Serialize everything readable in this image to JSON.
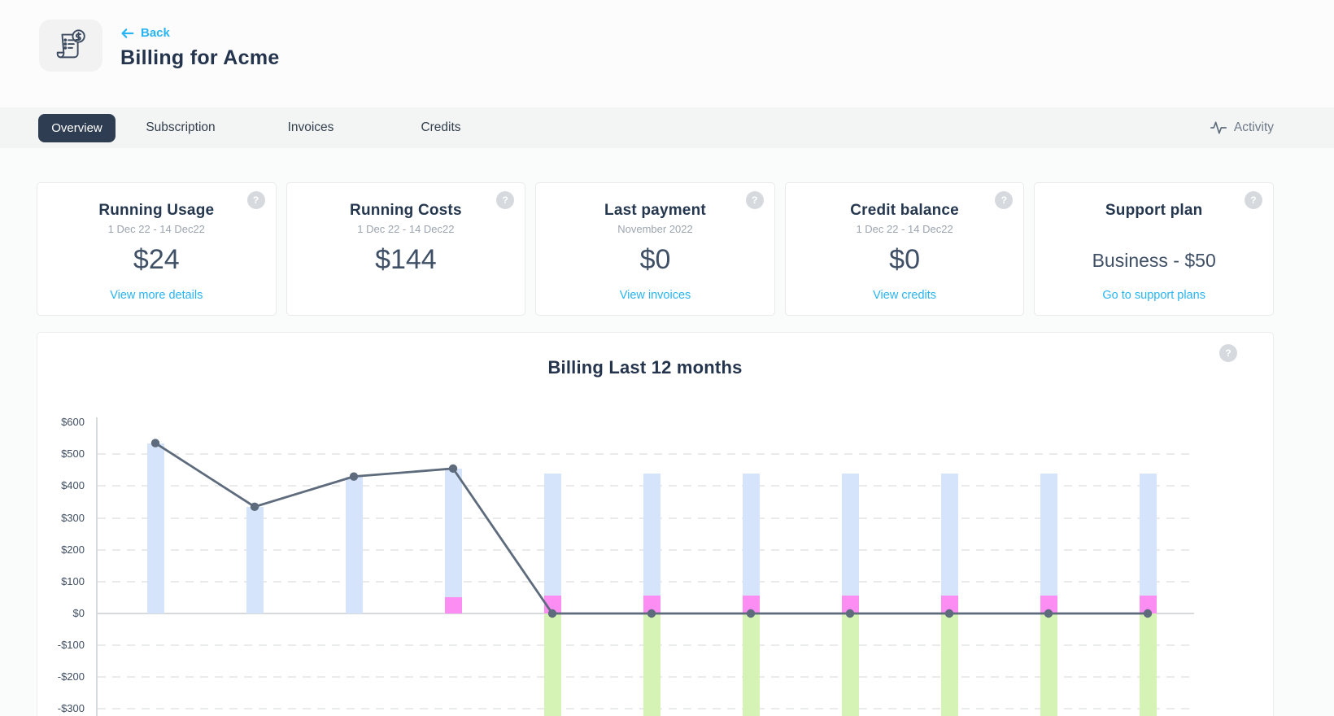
{
  "header": {
    "back_label": "Back",
    "title": "Billing for Acme"
  },
  "tabs": {
    "items": [
      {
        "label": "Overview",
        "active": true
      },
      {
        "label": "Subscription",
        "active": false
      },
      {
        "label": "Invoices",
        "active": false
      },
      {
        "label": "Credits",
        "active": false
      }
    ],
    "activity_label": "Activity"
  },
  "cards": [
    {
      "title": "Running Usage",
      "subtitle": "1 Dec 22 - 14 Dec22",
      "value": "$24",
      "link": "View more details",
      "help": "?"
    },
    {
      "title": "Running Costs",
      "subtitle": "1 Dec 22 - 14 Dec22",
      "value": "$144",
      "link": "",
      "help": "?"
    },
    {
      "title": "Last payment",
      "subtitle": "November 2022",
      "value": "$0",
      "link": "View invoices",
      "help": "?"
    },
    {
      "title": "Credit balance",
      "subtitle": "1 Dec 22 - 14 Dec22",
      "value": "$0",
      "link": "View credits",
      "help": "?"
    },
    {
      "title": "Support plan",
      "subtitle": "",
      "value": "Business - $50",
      "link": "Go to support plans",
      "help": "?"
    }
  ],
  "chart": {
    "title": "Billing Last 12 months",
    "help": "?"
  },
  "chart_data": {
    "type": "bar+line",
    "title": "Billing Last 12 months",
    "x_labels_visible": false,
    "months_visible": 11,
    "y_ticks": [
      {
        "label": "$600",
        "value": 600,
        "gridline": false
      },
      {
        "label": "$500",
        "value": 500,
        "gridline": true
      },
      {
        "label": "$400",
        "value": 400,
        "gridline": true
      },
      {
        "label": "$300",
        "value": 300,
        "gridline": true
      },
      {
        "label": "$200",
        "value": 200,
        "gridline": true
      },
      {
        "label": "$100",
        "value": 100,
        "gridline": true
      },
      {
        "label": "$0",
        "value": 0,
        "gridline": true
      },
      {
        "label": "-$100",
        "value": -100,
        "gridline": true
      },
      {
        "label": "-$200",
        "value": -200,
        "gridline": true
      },
      {
        "label": "-$300",
        "value": -300,
        "gridline": true
      }
    ],
    "ylim_visible": [
      -300,
      600
    ],
    "zero_line_solid": true,
    "colors": {
      "blue": "#d6e4fb",
      "pink": "#fb8df3",
      "green": "#d5f3b5",
      "line": "#5d6b7c",
      "axis": "#d7dadd",
      "grid": "#e9eaea"
    },
    "bars": [
      {
        "segments": [
          {
            "color": "blue",
            "from": 0,
            "to": 535
          }
        ]
      },
      {
        "segments": [
          {
            "color": "blue",
            "from": 0,
            "to": 335
          }
        ]
      },
      {
        "segments": [
          {
            "color": "blue",
            "from": 0,
            "to": 430
          }
        ]
      },
      {
        "segments": [
          {
            "color": "pink",
            "from": 0,
            "to": 50
          },
          {
            "color": "blue",
            "from": 50,
            "to": 455
          }
        ]
      },
      {
        "segments": [
          {
            "color": "green",
            "from": -390,
            "to": 0
          },
          {
            "color": "pink",
            "from": 0,
            "to": 55
          },
          {
            "color": "blue",
            "from": 55,
            "to": 440
          }
        ]
      },
      {
        "segments": [
          {
            "color": "green",
            "from": -390,
            "to": 0
          },
          {
            "color": "pink",
            "from": 0,
            "to": 55
          },
          {
            "color": "blue",
            "from": 55,
            "to": 440
          }
        ]
      },
      {
        "segments": [
          {
            "color": "green",
            "from": -390,
            "to": 0
          },
          {
            "color": "pink",
            "from": 0,
            "to": 55
          },
          {
            "color": "blue",
            "from": 55,
            "to": 440
          }
        ]
      },
      {
        "segments": [
          {
            "color": "green",
            "from": -390,
            "to": 0
          },
          {
            "color": "pink",
            "from": 0,
            "to": 55
          },
          {
            "color": "blue",
            "from": 55,
            "to": 440
          }
        ]
      },
      {
        "segments": [
          {
            "color": "green",
            "from": -390,
            "to": 0
          },
          {
            "color": "pink",
            "from": 0,
            "to": 55
          },
          {
            "color": "blue",
            "from": 55,
            "to": 440
          }
        ]
      },
      {
        "segments": [
          {
            "color": "green",
            "from": -390,
            "to": 0
          },
          {
            "color": "pink",
            "from": 0,
            "to": 55
          },
          {
            "color": "blue",
            "from": 55,
            "to": 440
          }
        ]
      },
      {
        "segments": [
          {
            "color": "green",
            "from": -390,
            "to": 0
          },
          {
            "color": "pink",
            "from": 0,
            "to": 55
          },
          {
            "color": "blue",
            "from": 55,
            "to": 440
          }
        ]
      }
    ],
    "line_values": [
      535,
      335,
      430,
      455,
      0,
      0,
      0,
      0,
      0,
      0,
      0
    ],
    "green_bars_clipped_at_bottom": true
  }
}
